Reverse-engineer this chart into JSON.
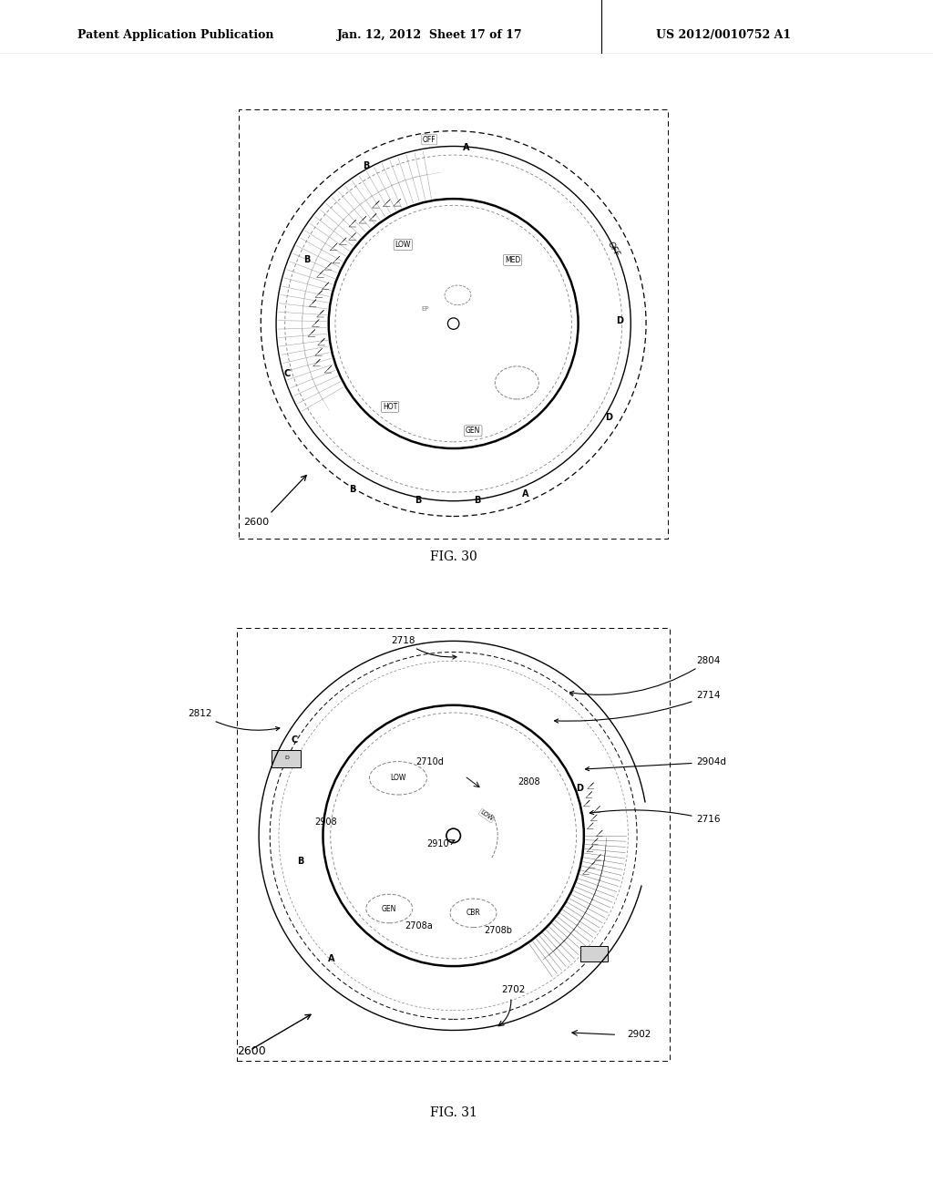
{
  "header_text": "Patent Application Publication",
  "header_date": "Jan. 12, 2012  Sheet 17 of 17",
  "header_patent": "US 2012/0010752 A1",
  "fig30_label": "FIG. 30",
  "fig31_label": "FIG. 31",
  "bg_color": "#ffffff",
  "fig30_ref": "2600",
  "fig31_refs": {
    "r2600": "2600",
    "r2702": "2702",
    "r2708a": "2708a",
    "r2708b": "2708b",
    "r2710d": "2710d",
    "r2714": "2714",
    "r2716": "2716",
    "r2718": "2718",
    "r2804": "2804",
    "r2808": "2808",
    "r2812": "2812",
    "r2902": "2902",
    "r2904d": "2904d",
    "r2908": "2908",
    "r2910": "2910"
  }
}
